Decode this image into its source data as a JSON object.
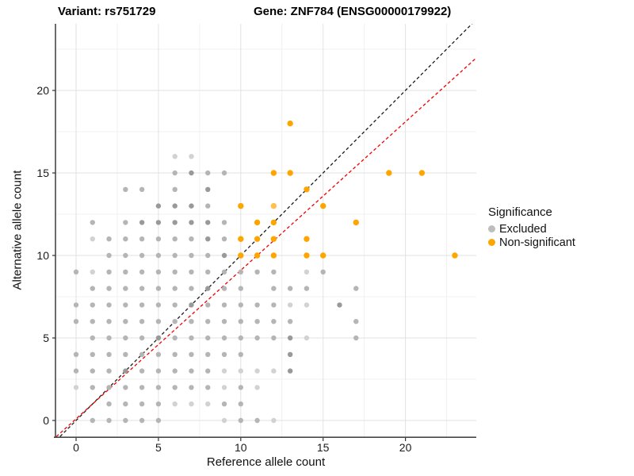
{
  "titles": {
    "left": "Variant: rs751729",
    "right": "Gene: ZNF784 (ENSG00000179922)"
  },
  "chart_data": {
    "type": "scatter",
    "xlabel": "Reference allele count",
    "ylabel": "Alternative allele count",
    "x_ticks": [
      0,
      5,
      10,
      15,
      20
    ],
    "y_ticks": [
      0,
      5,
      10,
      15,
      20
    ],
    "x_minor_gridlines": [
      2.5,
      7.5,
      12.5,
      17.5,
      22.5
    ],
    "y_minor_gridlines": [
      2.5,
      7.5,
      12.5,
      17.5,
      22.5
    ],
    "xlim": [
      -1.25,
      24.3
    ],
    "ylim": [
      -1.06,
      24.05
    ],
    "grid": true,
    "legend": {
      "title": "Significance",
      "position": "right",
      "items": [
        {
          "label": "Excluded",
          "color": "#bdbdbd"
        },
        {
          "label": "Non-significant",
          "color": "#ffa500"
        }
      ]
    },
    "ref_lines": [
      {
        "name": "identity",
        "slope": 1,
        "intercept": 0,
        "color": "#1a1a1a",
        "dash": "4,3"
      },
      {
        "name": "expected-ratio",
        "slope": 0.9,
        "intercept": 0.1,
        "color": "#ee0000",
        "dash": "4,3"
      }
    ],
    "shade_colors": {
      "excluded": [
        "#d2d2d2",
        "#b5b5b5",
        "#999999"
      ],
      "non_significant": [
        "#ffc04d",
        "#ffa500"
      ]
    },
    "series": [
      {
        "name": "Excluded",
        "color": "#bdbdbd",
        "points": [
          [
            1,
            0,
            1
          ],
          [
            2,
            0,
            1
          ],
          [
            3,
            0,
            1
          ],
          [
            4,
            0,
            1
          ],
          [
            5,
            0,
            1
          ],
          [
            9,
            0,
            0
          ],
          [
            10,
            0,
            1
          ],
          [
            11,
            0,
            1
          ],
          [
            12,
            0,
            0
          ],
          [
            2,
            1,
            1
          ],
          [
            3,
            1,
            1
          ],
          [
            4,
            1,
            1
          ],
          [
            5,
            1,
            1
          ],
          [
            6,
            1,
            0
          ],
          [
            7,
            1,
            0
          ],
          [
            8,
            1,
            0
          ],
          [
            9,
            1,
            1
          ],
          [
            10,
            1,
            1
          ],
          [
            0,
            2,
            0
          ],
          [
            1,
            2,
            1
          ],
          [
            2,
            2,
            1
          ],
          [
            3,
            2,
            1
          ],
          [
            4,
            2,
            1
          ],
          [
            5,
            2,
            1
          ],
          [
            6,
            2,
            1
          ],
          [
            7,
            2,
            1
          ],
          [
            8,
            2,
            1
          ],
          [
            9,
            2,
            0
          ],
          [
            10,
            2,
            1
          ],
          [
            11,
            2,
            0
          ],
          [
            0,
            3,
            1
          ],
          [
            1,
            3,
            1
          ],
          [
            2,
            3,
            1
          ],
          [
            3,
            3,
            2
          ],
          [
            4,
            3,
            1
          ],
          [
            5,
            3,
            1
          ],
          [
            6,
            3,
            1
          ],
          [
            7,
            3,
            1
          ],
          [
            8,
            3,
            1
          ],
          [
            9,
            3,
            0
          ],
          [
            10,
            3,
            0
          ],
          [
            11,
            3,
            0
          ],
          [
            12,
            3,
            0
          ],
          [
            13,
            3,
            2
          ],
          [
            0,
            4,
            1
          ],
          [
            1,
            4,
            1
          ],
          [
            2,
            4,
            1
          ],
          [
            3,
            4,
            1
          ],
          [
            4,
            4,
            1
          ],
          [
            5,
            4,
            1
          ],
          [
            6,
            4,
            1
          ],
          [
            7,
            4,
            1
          ],
          [
            8,
            4,
            1
          ],
          [
            9,
            4,
            1
          ],
          [
            10,
            4,
            1
          ],
          [
            13,
            4,
            2
          ],
          [
            1,
            5,
            1
          ],
          [
            2,
            5,
            1
          ],
          [
            3,
            5,
            1
          ],
          [
            4,
            5,
            1
          ],
          [
            5,
            5,
            2
          ],
          [
            6,
            5,
            1
          ],
          [
            7,
            5,
            1
          ],
          [
            8,
            5,
            1
          ],
          [
            9,
            5,
            1
          ],
          [
            10,
            5,
            1
          ],
          [
            11,
            5,
            1
          ],
          [
            12,
            5,
            1
          ],
          [
            13,
            5,
            2
          ],
          [
            14,
            5,
            0
          ],
          [
            17,
            5,
            1
          ],
          [
            0,
            6,
            1
          ],
          [
            1,
            6,
            1
          ],
          [
            2,
            6,
            1
          ],
          [
            3,
            6,
            1
          ],
          [
            4,
            6,
            1
          ],
          [
            5,
            6,
            1
          ],
          [
            6,
            6,
            1
          ],
          [
            7,
            6,
            1
          ],
          [
            8,
            6,
            1
          ],
          [
            9,
            6,
            1
          ],
          [
            10,
            6,
            1
          ],
          [
            11,
            6,
            1
          ],
          [
            12,
            6,
            1
          ],
          [
            13,
            6,
            1
          ],
          [
            17,
            6,
            1
          ],
          [
            0,
            7,
            1
          ],
          [
            1,
            7,
            1
          ],
          [
            2,
            7,
            1
          ],
          [
            3,
            7,
            1
          ],
          [
            4,
            7,
            1
          ],
          [
            5,
            7,
            1
          ],
          [
            6,
            7,
            1
          ],
          [
            7,
            7,
            2
          ],
          [
            8,
            7,
            1
          ],
          [
            9,
            7,
            1
          ],
          [
            10,
            7,
            1
          ],
          [
            11,
            7,
            1
          ],
          [
            12,
            7,
            1
          ],
          [
            13,
            7,
            0
          ],
          [
            14,
            7,
            0
          ],
          [
            16,
            7,
            2
          ],
          [
            1,
            8,
            1
          ],
          [
            2,
            8,
            1
          ],
          [
            3,
            8,
            1
          ],
          [
            4,
            8,
            1
          ],
          [
            5,
            8,
            1
          ],
          [
            6,
            8,
            1
          ],
          [
            7,
            8,
            1
          ],
          [
            8,
            8,
            2
          ],
          [
            9,
            8,
            1
          ],
          [
            10,
            8,
            1
          ],
          [
            12,
            8,
            1
          ],
          [
            13,
            8,
            1
          ],
          [
            14,
            8,
            1
          ],
          [
            17,
            8,
            1
          ],
          [
            0,
            9,
            1
          ],
          [
            1,
            9,
            0
          ],
          [
            2,
            9,
            1
          ],
          [
            3,
            9,
            1
          ],
          [
            4,
            9,
            1
          ],
          [
            5,
            9,
            1
          ],
          [
            6,
            9,
            1
          ],
          [
            7,
            9,
            1
          ],
          [
            8,
            9,
            1
          ],
          [
            9,
            9,
            1
          ],
          [
            10,
            9,
            1
          ],
          [
            11,
            9,
            1
          ],
          [
            12,
            9,
            1
          ],
          [
            14,
            9,
            0
          ],
          [
            15,
            9,
            1
          ],
          [
            2,
            10,
            1
          ],
          [
            3,
            10,
            1
          ],
          [
            4,
            10,
            1
          ],
          [
            5,
            10,
            1
          ],
          [
            6,
            10,
            1
          ],
          [
            7,
            10,
            1
          ],
          [
            8,
            10,
            1
          ],
          [
            9,
            10,
            2
          ],
          [
            1,
            11,
            0
          ],
          [
            2,
            11,
            1
          ],
          [
            3,
            11,
            1
          ],
          [
            4,
            11,
            1
          ],
          [
            5,
            11,
            1
          ],
          [
            6,
            11,
            1
          ],
          [
            7,
            11,
            1
          ],
          [
            8,
            11,
            2
          ],
          [
            9,
            11,
            1
          ],
          [
            1,
            12,
            1
          ],
          [
            3,
            12,
            1
          ],
          [
            4,
            12,
            2
          ],
          [
            5,
            12,
            2
          ],
          [
            6,
            12,
            2
          ],
          [
            7,
            12,
            2
          ],
          [
            8,
            12,
            2
          ],
          [
            9,
            12,
            1
          ],
          [
            5,
            13,
            2
          ],
          [
            6,
            13,
            2
          ],
          [
            7,
            13,
            2
          ],
          [
            8,
            13,
            1
          ],
          [
            3,
            14,
            1
          ],
          [
            4,
            14,
            1
          ],
          [
            6,
            14,
            1
          ],
          [
            8,
            14,
            2
          ],
          [
            6,
            15,
            1
          ],
          [
            7,
            15,
            2
          ],
          [
            8,
            15,
            1
          ],
          [
            9,
            15,
            1
          ],
          [
            6,
            16,
            0
          ],
          [
            7,
            16,
            0
          ]
        ]
      },
      {
        "name": "Non-significant",
        "color": "#ffa500",
        "points": [
          [
            10,
            10,
            1
          ],
          [
            11,
            10,
            1
          ],
          [
            12,
            10,
            1
          ],
          [
            14,
            10,
            1
          ],
          [
            15,
            10,
            1
          ],
          [
            23,
            10,
            1
          ],
          [
            10,
            11,
            1
          ],
          [
            11,
            11,
            1
          ],
          [
            12,
            11,
            1
          ],
          [
            14,
            11,
            1
          ],
          [
            11,
            12,
            1
          ],
          [
            12,
            12,
            1
          ],
          [
            17,
            12,
            1
          ],
          [
            10,
            13,
            1
          ],
          [
            12,
            13,
            0
          ],
          [
            15,
            13,
            1
          ],
          [
            14,
            14,
            1
          ],
          [
            12,
            15,
            1
          ],
          [
            13,
            15,
            1
          ],
          [
            19,
            15,
            1
          ],
          [
            21,
            15,
            1
          ],
          [
            13,
            18,
            1
          ]
        ]
      }
    ]
  }
}
